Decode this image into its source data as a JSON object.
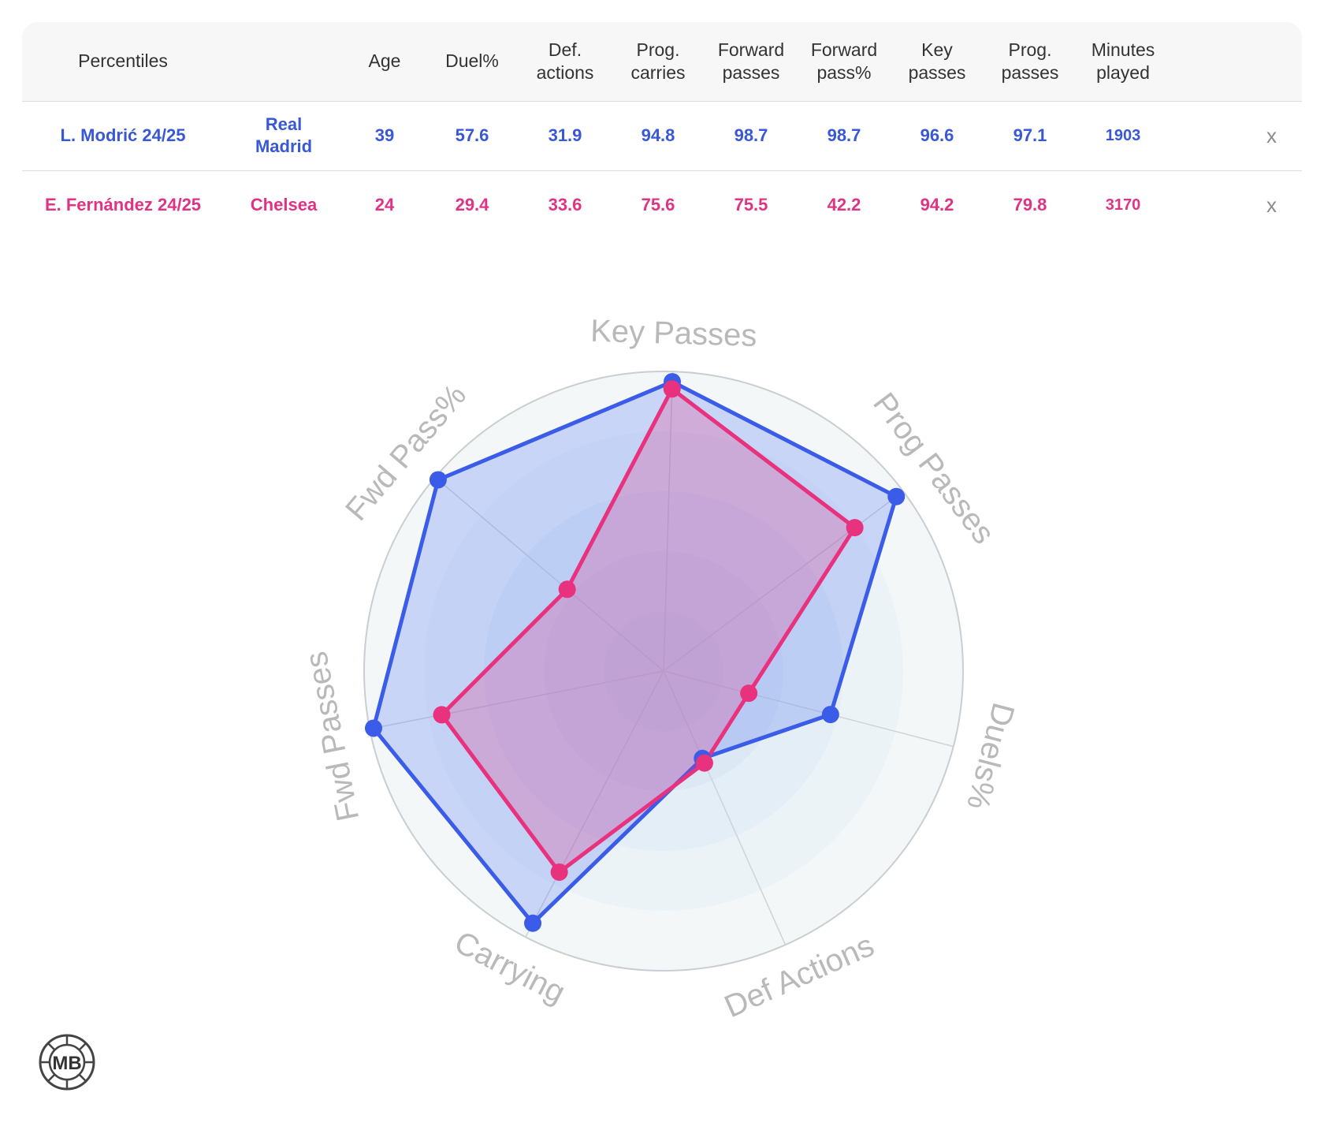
{
  "table": {
    "headers": [
      "Percentiles",
      "",
      "Age",
      "Duel%",
      "Def. actions",
      "Prog. carries",
      "Forward passes",
      "Forward pass%",
      "Key passes",
      "Prog. passes",
      "Minutes played",
      ""
    ],
    "rows": [
      {
        "player": "L. Modrić 24/25",
        "club": "Real Madrid",
        "age": "39",
        "duel_pct": "57.6",
        "def_actions": "31.9",
        "prog_carries": "94.8",
        "forward_passes": "98.7",
        "forward_pass_pct": "98.7",
        "key_passes": "96.6",
        "prog_passes": "97.1",
        "minutes": "1903",
        "remove": "x"
      },
      {
        "player": "E. Fernández 24/25",
        "club": "Chelsea",
        "age": "24",
        "duel_pct": "29.4",
        "def_actions": "33.6",
        "prog_carries": "75.6",
        "forward_passes": "75.5",
        "forward_pass_pct": "42.2",
        "key_passes": "94.2",
        "prog_passes": "79.8",
        "minutes": "3170",
        "remove": "x"
      }
    ]
  },
  "chart_data": {
    "type": "radar",
    "axes": [
      "Key Passes",
      "Prog Passes",
      "Duels%",
      "Def Actions",
      "Carrying",
      "Fwd Passes",
      "Fwd Pass%"
    ],
    "range": [
      0,
      100
    ],
    "series": [
      {
        "name": "L. Modrić 24/25",
        "color": "#3a5ce8",
        "values": [
          96.6,
          97.1,
          57.6,
          31.9,
          94.8,
          98.7,
          98.7
        ]
      },
      {
        "name": "E. Fernández 24/25",
        "color": "#e8327e",
        "values": [
          94.2,
          79.8,
          29.4,
          33.6,
          75.6,
          75.5,
          42.2
        ]
      }
    ]
  },
  "logo": {
    "text": "MB"
  }
}
